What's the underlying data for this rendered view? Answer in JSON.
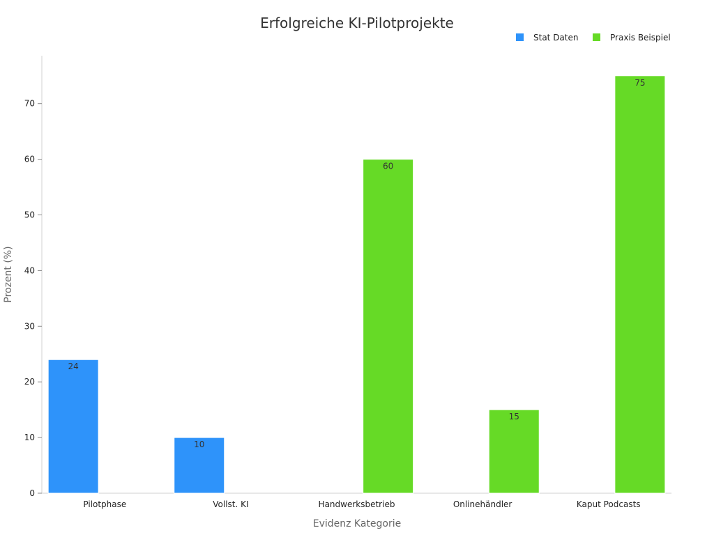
{
  "chart_data": {
    "type": "bar",
    "title": "Erfolgreiche KI-Pilotprojekte",
    "xlabel": "Evidenz Kategorie",
    "ylabel": "Prozent (%)",
    "ylim": [
      0,
      78.6
    ],
    "yticks": [
      0,
      10,
      20,
      30,
      40,
      50,
      60,
      70
    ],
    "categories": [
      "Pilotphase",
      "Vollst. KI",
      "Handwerksbetrieb",
      "Onlinehändler",
      "Kaput Podcasts"
    ],
    "series": [
      {
        "name": "Stat Daten",
        "color": "#2e93fa",
        "values": [
          24,
          10,
          null,
          null,
          null
        ]
      },
      {
        "name": "Praxis Beispiel",
        "color": "#66da26",
        "values": [
          null,
          null,
          60,
          15,
          75
        ]
      }
    ],
    "legend_position": "top-right",
    "grid": false,
    "data_labels": true
  }
}
